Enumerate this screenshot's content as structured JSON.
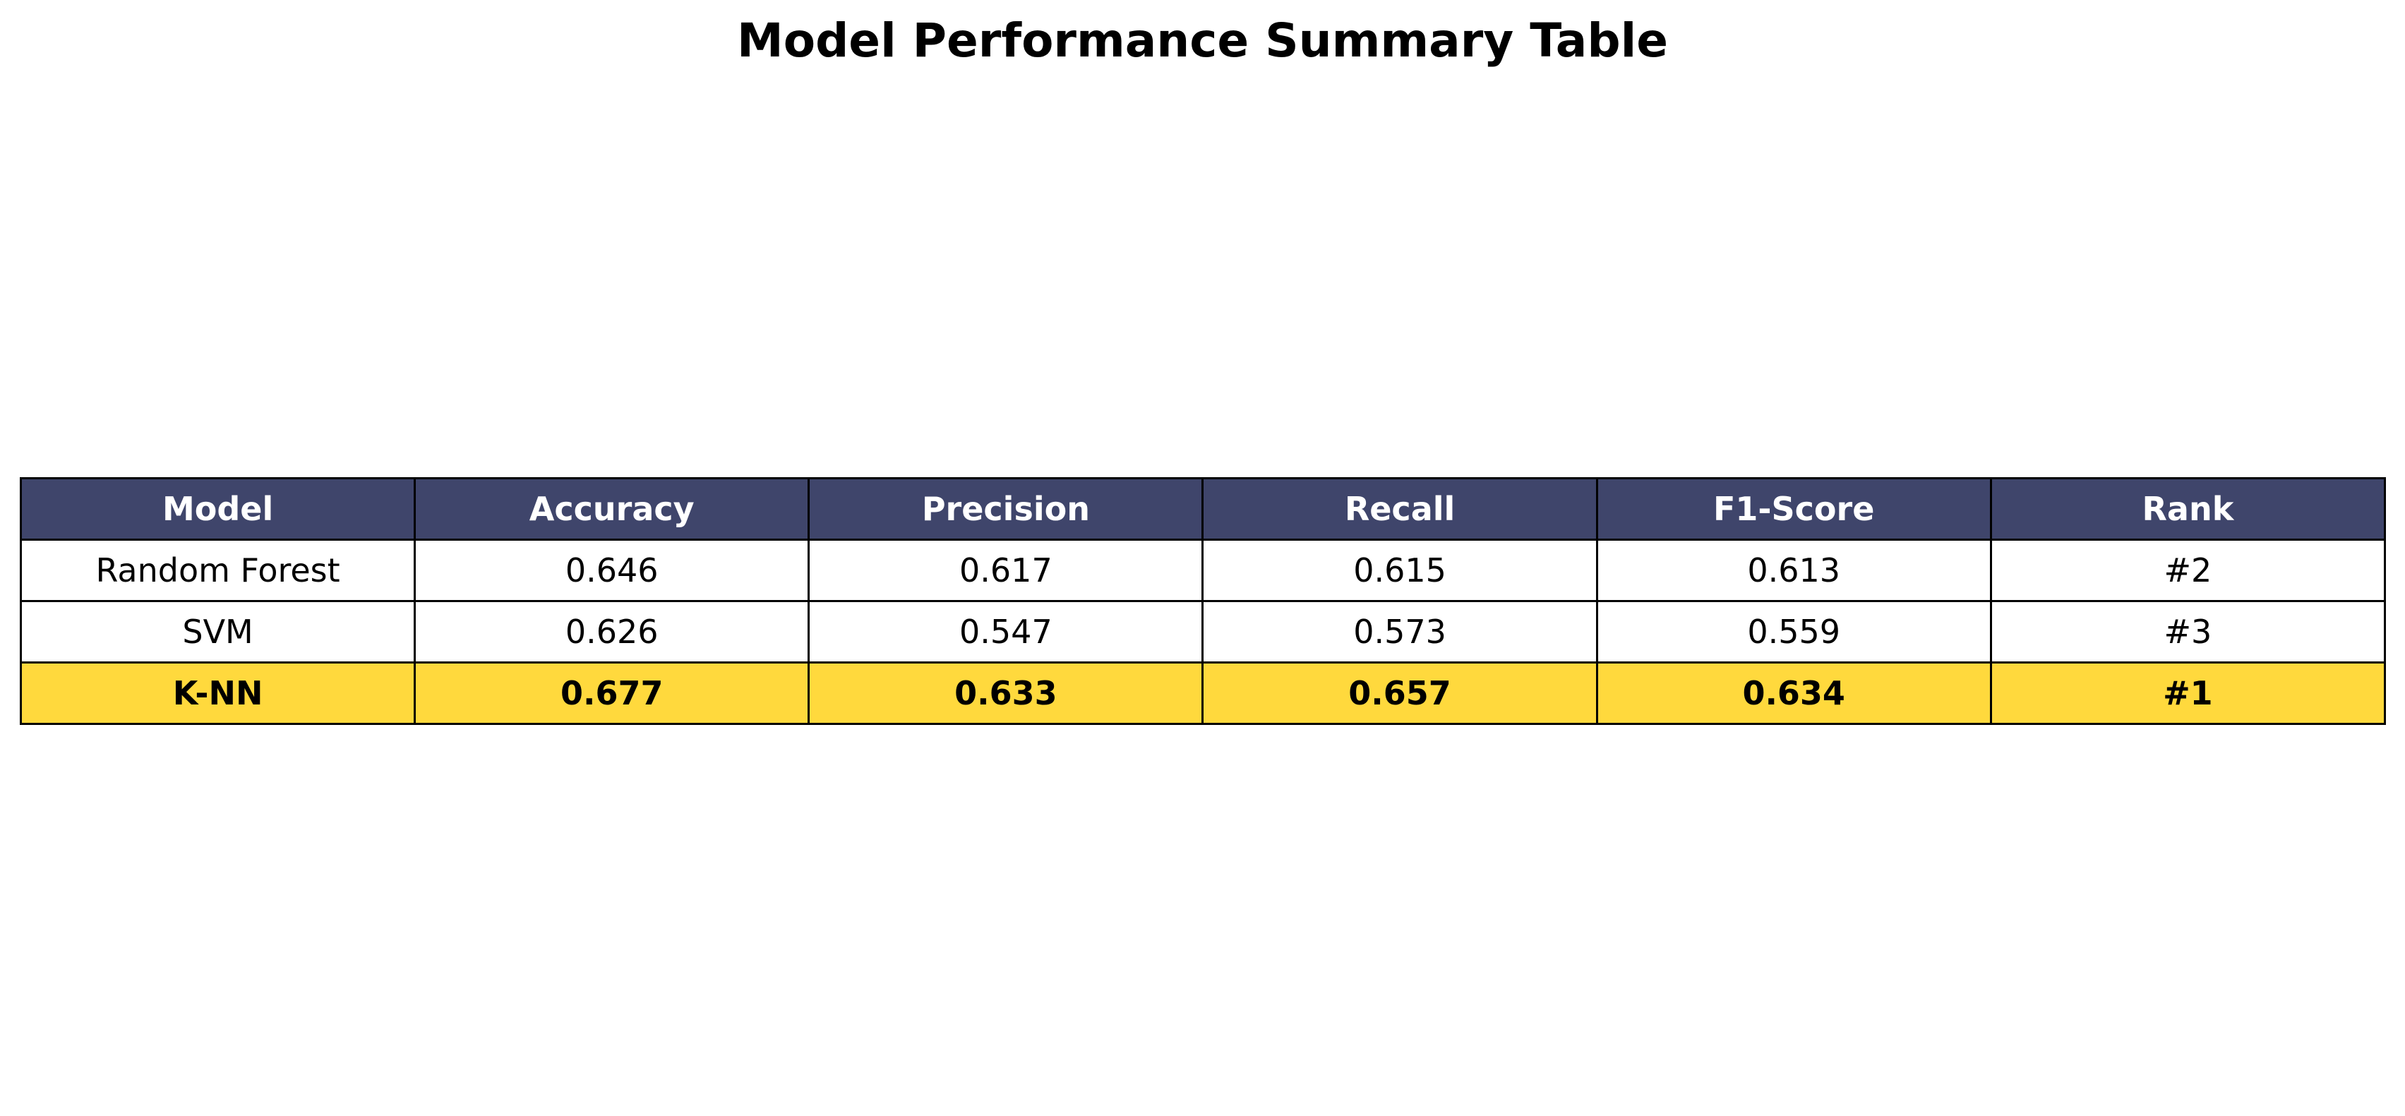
{
  "chart_data": {
    "type": "table",
    "title": "Model Performance Summary Table",
    "columns": [
      "Model",
      "Accuracy",
      "Precision",
      "Recall",
      "F1-Score",
      "Rank"
    ],
    "rows": [
      [
        "Random Forest",
        "0.646",
        "0.617",
        "0.615",
        "0.613",
        "#2"
      ],
      [
        "SVM",
        "0.626",
        "0.547",
        "0.573",
        "0.559",
        "#3"
      ],
      [
        "K-NN",
        "0.677",
        "0.633",
        "0.657",
        "0.634",
        "#1"
      ]
    ],
    "highlight_row": 2,
    "colors": {
      "header_bg": "#3f456b",
      "header_text": "#ffffff",
      "row_bg": "#ffffff",
      "highlight_bg": "#ffd93d",
      "border": "#000000"
    }
  }
}
